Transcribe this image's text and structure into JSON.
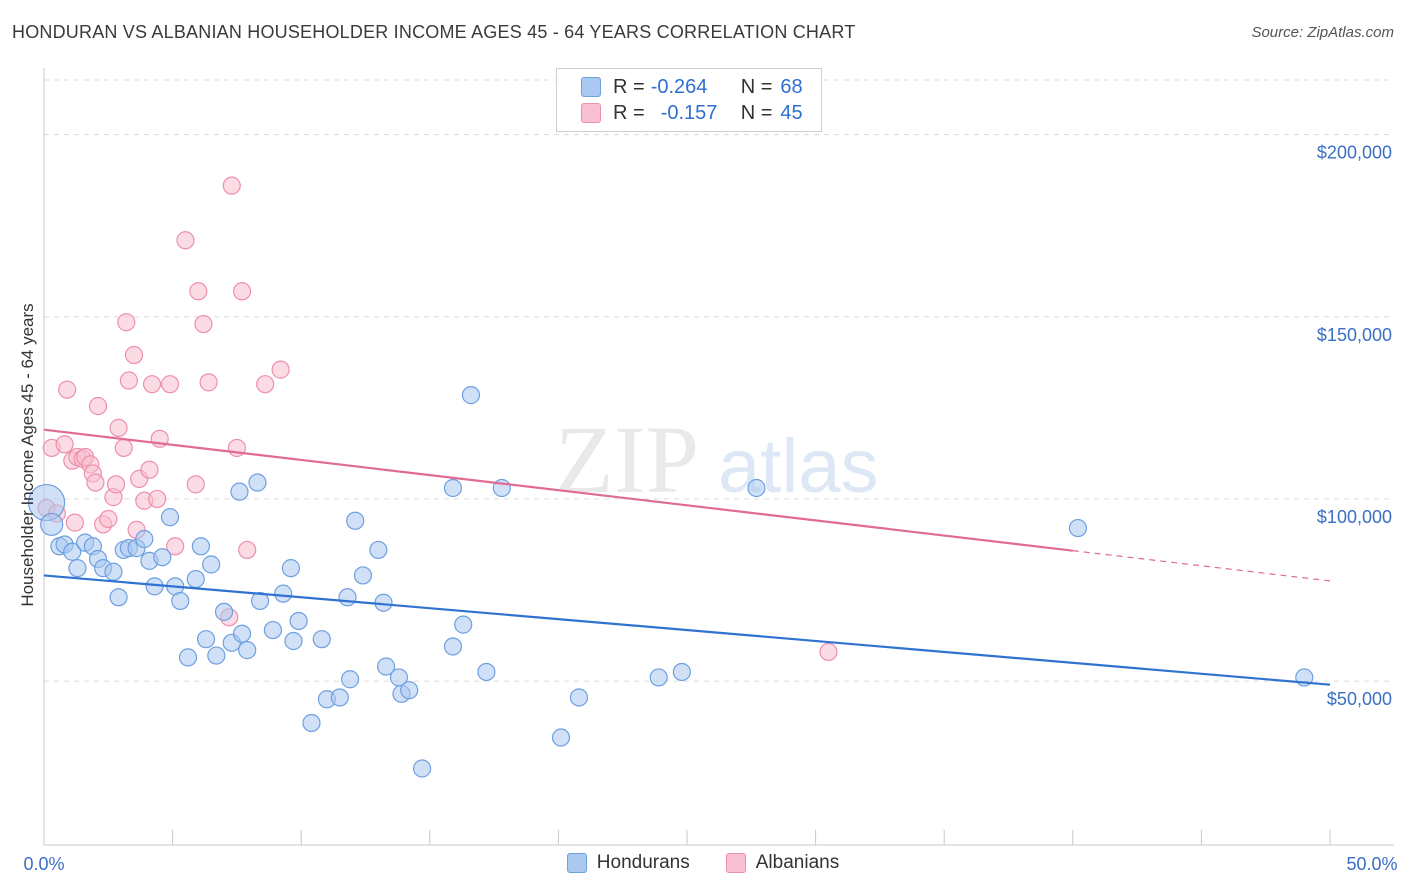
{
  "header": {
    "title": "HONDURAN VS ALBANIAN HOUSEHOLDER INCOME AGES 45 - 64 YEARS CORRELATION CHART",
    "source": "Source: ZipAtlas.com"
  },
  "legend": {
    "series1": {
      "r_label": "R =",
      "r_value": "-0.264",
      "n_label": "N =",
      "n_value": "68"
    },
    "series2": {
      "r_label": "R =",
      "r_value": "-0.157",
      "n_label": "N =",
      "n_value": "45"
    }
  },
  "bottom_legend": {
    "series1": "Hondurans",
    "series2": "Albanians"
  },
  "watermark": {
    "zip": "ZIP",
    "atlas": "atlas"
  },
  "colors": {
    "blue_fill": "#aac8f0",
    "blue_stroke": "#6e9fe0",
    "blue_line": "#2f72d0",
    "pink_fill": "#f7bfd0",
    "pink_stroke": "#ee8fac",
    "pink_line": "#e06b93",
    "axis_text": "#3a6fc4"
  },
  "chart_data": {
    "type": "scatter",
    "title": "HONDURAN VS ALBANIAN HOUSEHOLDER INCOME AGES 45 - 64 YEARS CORRELATION CHART",
    "xlabel": "",
    "ylabel": "Householder Income Ages 45 - 64 years",
    "xlim": [
      0,
      50
    ],
    "ylim": [
      5000,
      215000
    ],
    "x_tick_labels": [
      "0.0%",
      "50.0%"
    ],
    "y_ticks": [
      50000,
      100000,
      150000,
      200000
    ],
    "y_tick_labels": [
      "$50,000",
      "$100,000",
      "$150,000",
      "$200,000"
    ],
    "grid": true,
    "legend_position": "top-center",
    "series": [
      {
        "name": "Hondurans",
        "r": -0.264,
        "n": 68,
        "trend": {
          "x0": 0,
          "y0": 79000,
          "x1": 50,
          "y1": 49000
        },
        "points": [
          [
            0.1,
            99000
          ],
          [
            0.3,
            93000
          ],
          [
            0.6,
            87000
          ],
          [
            0.8,
            87500
          ],
          [
            1.1,
            85500
          ],
          [
            1.3,
            81000
          ],
          [
            1.6,
            88000
          ],
          [
            1.9,
            87000
          ],
          [
            2.1,
            83500
          ],
          [
            2.3,
            81000
          ],
          [
            2.7,
            80000
          ],
          [
            2.9,
            73000
          ],
          [
            3.1,
            86000
          ],
          [
            3.3,
            86500
          ],
          [
            3.6,
            86500
          ],
          [
            3.9,
            89000
          ],
          [
            4.1,
            83000
          ],
          [
            4.3,
            76000
          ],
          [
            4.6,
            84000
          ],
          [
            4.9,
            95000
          ],
          [
            5.1,
            76000
          ],
          [
            5.3,
            72000
          ],
          [
            5.6,
            56500
          ],
          [
            5.9,
            78000
          ],
          [
            6.1,
            87000
          ],
          [
            6.3,
            61500
          ],
          [
            6.5,
            82000
          ],
          [
            6.7,
            57000
          ],
          [
            7.0,
            69000
          ],
          [
            7.3,
            60500
          ],
          [
            7.6,
            102000
          ],
          [
            7.7,
            63000
          ],
          [
            7.9,
            58500
          ],
          [
            8.3,
            104500
          ],
          [
            8.4,
            72000
          ],
          [
            8.9,
            64000
          ],
          [
            9.3,
            74000
          ],
          [
            9.6,
            81000
          ],
          [
            9.7,
            61000
          ],
          [
            9.9,
            66500
          ],
          [
            10.4,
            38500
          ],
          [
            10.8,
            61500
          ],
          [
            11.0,
            45000
          ],
          [
            11.5,
            45500
          ],
          [
            11.8,
            73000
          ],
          [
            11.9,
            50500
          ],
          [
            12.1,
            94000
          ],
          [
            12.4,
            79000
          ],
          [
            13.0,
            86000
          ],
          [
            13.2,
            71500
          ],
          [
            13.3,
            54000
          ],
          [
            13.8,
            51000
          ],
          [
            13.9,
            46500
          ],
          [
            14.2,
            47500
          ],
          [
            14.7,
            26000
          ],
          [
            15.9,
            59500
          ],
          [
            15.9,
            103000
          ],
          [
            16.3,
            65500
          ],
          [
            16.6,
            128500
          ],
          [
            17.2,
            52500
          ],
          [
            17.8,
            103000
          ],
          [
            20.1,
            34500
          ],
          [
            20.8,
            45500
          ],
          [
            23.9,
            51000
          ],
          [
            24.8,
            52500
          ],
          [
            27.7,
            103000
          ],
          [
            40.2,
            92000
          ],
          [
            49.0,
            51000
          ]
        ]
      },
      {
        "name": "Albanians",
        "r": -0.157,
        "n": 45,
        "trend": {
          "x0": 0,
          "y0": 119000,
          "x1": 50,
          "y1": 77500,
          "solid_until_x": 40
        },
        "points": [
          [
            0.1,
            97500
          ],
          [
            0.3,
            114000
          ],
          [
            0.5,
            96000
          ],
          [
            0.8,
            115000
          ],
          [
            0.9,
            130000
          ],
          [
            1.1,
            110500
          ],
          [
            1.2,
            93500
          ],
          [
            1.3,
            111500
          ],
          [
            1.5,
            111000
          ],
          [
            1.6,
            111500
          ],
          [
            1.8,
            109500
          ],
          [
            1.9,
            107000
          ],
          [
            2.0,
            104500
          ],
          [
            2.1,
            125500
          ],
          [
            2.3,
            93000
          ],
          [
            2.5,
            94500
          ],
          [
            2.7,
            100500
          ],
          [
            2.8,
            104000
          ],
          [
            2.9,
            119500
          ],
          [
            3.1,
            114000
          ],
          [
            3.2,
            148500
          ],
          [
            3.3,
            132500
          ],
          [
            3.5,
            139500
          ],
          [
            3.6,
            91500
          ],
          [
            3.7,
            105500
          ],
          [
            3.9,
            99500
          ],
          [
            4.1,
            108000
          ],
          [
            4.2,
            131500
          ],
          [
            4.4,
            100000
          ],
          [
            4.5,
            116500
          ],
          [
            4.9,
            131500
          ],
          [
            5.1,
            87000
          ],
          [
            5.5,
            171000
          ],
          [
            5.9,
            104000
          ],
          [
            6.0,
            157000
          ],
          [
            6.2,
            148000
          ],
          [
            6.4,
            132000
          ],
          [
            7.2,
            67500
          ],
          [
            7.3,
            186000
          ],
          [
            7.5,
            114000
          ],
          [
            7.7,
            157000
          ],
          [
            7.9,
            86000
          ],
          [
            8.6,
            131500
          ],
          [
            9.2,
            135500
          ],
          [
            30.5,
            58000
          ]
        ]
      }
    ]
  }
}
